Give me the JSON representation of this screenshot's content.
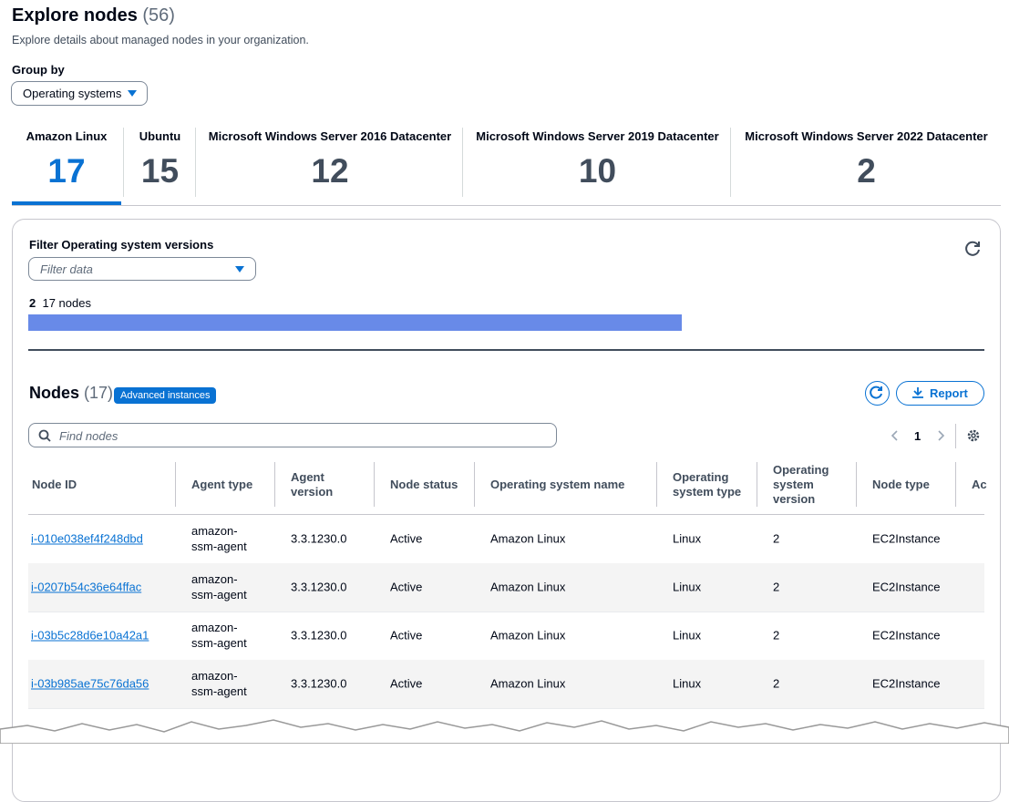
{
  "header": {
    "title": "Explore nodes",
    "count": "(56)",
    "description": "Explore details about managed nodes in your organization."
  },
  "group_by": {
    "label": "Group by",
    "value": "Operating systems"
  },
  "tabs": [
    {
      "label": "Amazon Linux",
      "count": 17
    },
    {
      "label": "Ubuntu",
      "count": 15
    },
    {
      "label": "Microsoft Windows Server 2016 Datacenter",
      "count": 12
    },
    {
      "label": "Microsoft Windows Server 2019 Datacenter",
      "count": 10
    },
    {
      "label": "Microsoft Windows Server 2022 Datacenter",
      "count": 2
    }
  ],
  "filter": {
    "label": "Filter Operating system versions",
    "placeholder": "Filter data",
    "version": "2",
    "nodes": "17 nodes"
  },
  "nodes": {
    "title": "Nodes",
    "count": "(17)",
    "badge": "Advanced instances",
    "report": "Report",
    "search_placeholder": "Find nodes",
    "page": "1"
  },
  "table": {
    "columns": [
      "Node ID",
      "Agent type",
      "Agent version",
      "Node status",
      "Operating system name",
      "Operating system type",
      "Operating system version",
      "Node type",
      "Ac"
    ],
    "rows": [
      [
        "i-010e038ef4f248dbd",
        "amazon-ssm-agent",
        "3.3.1230.0",
        "Active",
        "Amazon Linux",
        "Linux",
        "2",
        "EC2Instance"
      ],
      [
        "i-0207b54c36e64ffac",
        "amazon-ssm-agent",
        "3.3.1230.0",
        "Active",
        "Amazon Linux",
        "Linux",
        "2",
        "EC2Instance"
      ],
      [
        "i-03b5c28d6e10a42a1",
        "amazon-ssm-agent",
        "3.3.1230.0",
        "Active",
        "Amazon Linux",
        "Linux",
        "2",
        "EC2Instance"
      ],
      [
        "i-03b985ae75c76da56",
        "amazon-ssm-agent",
        "3.3.1230.0",
        "Active",
        "Amazon Linux",
        "Linux",
        "2",
        "EC2Instance"
      ]
    ]
  }
}
